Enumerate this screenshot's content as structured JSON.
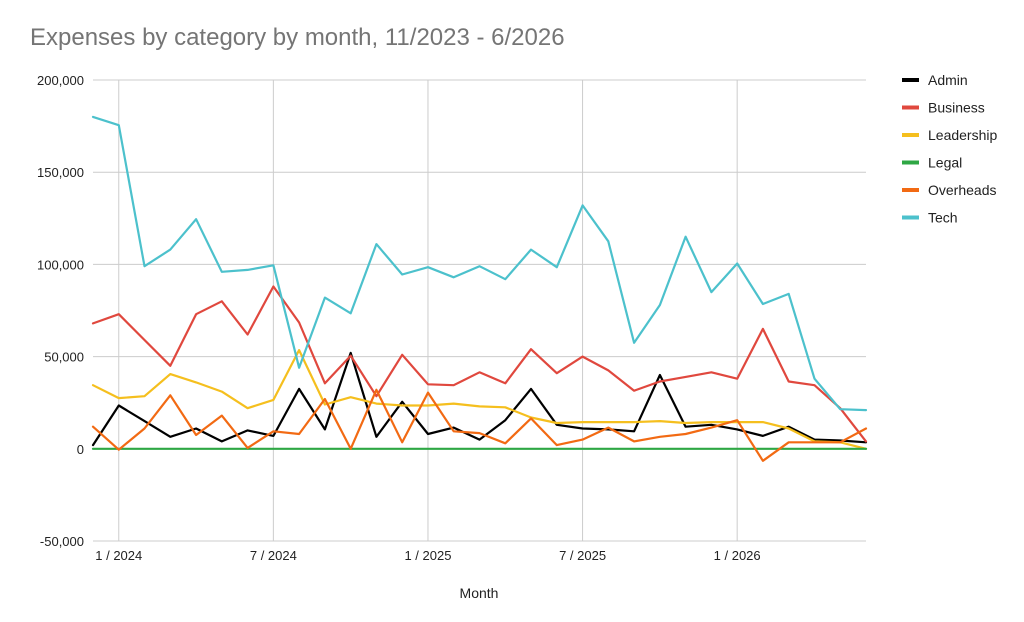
{
  "chart_data": {
    "type": "line",
    "title": "Expenses by category by month, 11/2023 - 6/2026",
    "xlabel": "Month",
    "ylabel": "",
    "ylim": [
      -50000,
      200000
    ],
    "yticks": [
      -50000,
      0,
      50000,
      100000,
      150000,
      200000
    ],
    "ytick_labels": [
      "-50,000",
      "0",
      "50,000",
      "100,000",
      "150,000",
      "200,000"
    ],
    "xlim": [
      "2023-12",
      "2026-06"
    ],
    "xticks": [
      "2024-01",
      "2024-07",
      "2025-01",
      "2025-07",
      "2026-01"
    ],
    "xtick_labels": [
      "1 / 2024",
      "7 / 2024",
      "1 / 2025",
      "7 / 2025",
      "1 / 2026"
    ],
    "grid": true,
    "legend": "right",
    "x": [
      "2023-12",
      "2024-01",
      "2024-02",
      "2024-03",
      "2024-04",
      "2024-05",
      "2024-06",
      "2024-07",
      "2024-08",
      "2024-09",
      "2024-10",
      "2024-11",
      "2024-12",
      "2025-01",
      "2025-02",
      "2025-03",
      "2025-04",
      "2025-05",
      "2025-06",
      "2025-07",
      "2025-08",
      "2025-09",
      "2025-10",
      "2025-11",
      "2025-12",
      "2026-01",
      "2026-02",
      "2026-03",
      "2026-04",
      "2026-05",
      "2026-06"
    ],
    "series": [
      {
        "name": "Admin",
        "color": "#000000",
        "values": [
          2000,
          23500,
          15000,
          6500,
          11000,
          4000,
          10000,
          7000,
          32500,
          10500,
          52000,
          6500,
          25500,
          8000,
          11500,
          5000,
          15500,
          32500,
          13000,
          11000,
          10500,
          9500,
          40000,
          12000,
          13000,
          10500,
          7000,
          12000,
          5000,
          4500,
          3500
        ]
      },
      {
        "name": "Business",
        "color": "#e0483e",
        "values": [
          68000,
          73000,
          59000,
          45000,
          73000,
          80000,
          62000,
          88000,
          68500,
          35500,
          50500,
          28500,
          51000,
          35000,
          34500,
          41500,
          35500,
          54000,
          41000,
          50000,
          42500,
          31500,
          36500,
          39000,
          41500,
          38000,
          65000,
          36500,
          34500,
          22000,
          4000
        ]
      },
      {
        "name": "Leadership",
        "color": "#f5bf1e",
        "values": [
          34500,
          27500,
          28500,
          40500,
          36000,
          31000,
          22000,
          26500,
          53500,
          24000,
          28000,
          24500,
          23500,
          23500,
          24500,
          23000,
          22500,
          17000,
          14000,
          14500,
          14500,
          14500,
          15000,
          14000,
          14500,
          14500,
          14500,
          11000,
          4000,
          3500,
          0
        ]
      },
      {
        "name": "Legal",
        "color": "#2ea744",
        "values": [
          0,
          0,
          0,
          0,
          0,
          0,
          0,
          0,
          0,
          0,
          0,
          0,
          0,
          0,
          0,
          0,
          0,
          0,
          0,
          0,
          0,
          0,
          0,
          0,
          0,
          0,
          0,
          0,
          0,
          0,
          0
        ]
      },
      {
        "name": "Overheads",
        "color": "#f26a13",
        "values": [
          12000,
          -500,
          11000,
          29000,
          7500,
          18000,
          500,
          9500,
          8000,
          27000,
          0,
          32000,
          3500,
          30500,
          9500,
          8500,
          3000,
          16500,
          2000,
          5000,
          11500,
          4000,
          6500,
          8000,
          11500,
          15500,
          -6500,
          3500,
          3500,
          3500,
          11000
        ]
      },
      {
        "name": "Tech",
        "color": "#4cc1cc",
        "values": [
          180000,
          175500,
          99000,
          108000,
          124500,
          96000,
          97000,
          99500,
          44000,
          82000,
          73500,
          111000,
          94500,
          98500,
          93000,
          99000,
          92000,
          108000,
          98500,
          132000,
          112500,
          57500,
          78000,
          115000,
          85000,
          100500,
          78500,
          84000,
          38000,
          21500,
          21000
        ]
      }
    ]
  }
}
